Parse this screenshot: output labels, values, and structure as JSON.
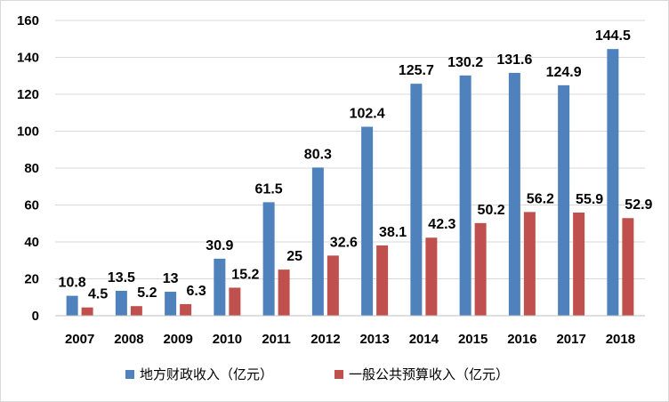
{
  "chart_data": {
    "type": "bar",
    "categories": [
      "2007",
      "2008",
      "2009",
      "2010",
      "2011",
      "2012",
      "2013",
      "2014",
      "2015",
      "2016",
      "2017",
      "2018"
    ],
    "series": [
      {
        "name": "地方财政收入（亿元）",
        "color": "#4f81bd",
        "values": [
          10.8,
          13.5,
          13,
          30.9,
          61.5,
          80.3,
          102.4,
          125.7,
          130.2,
          131.6,
          124.9,
          144.5
        ],
        "labels": [
          "10.8",
          "13.5",
          "13",
          "30.9",
          "61.5",
          "80.3",
          "102.4",
          "125.7",
          "130.2",
          "131.6",
          "124.9",
          "144.5"
        ]
      },
      {
        "name": "一般公共预算收入（亿元）",
        "color": "#c0504d",
        "values": [
          4.5,
          5.2,
          6.3,
          15.2,
          25,
          32.6,
          38.1,
          42.3,
          50.2,
          56.2,
          55.9,
          52.9
        ],
        "labels": [
          "4.5",
          "5.2",
          "6.3",
          "15.2",
          "25",
          "32.6",
          "38.1",
          "42.3",
          "50.2",
          "56.2",
          "55.9",
          "52.9"
        ]
      }
    ],
    "yticks": [
      "0",
      "20",
      "40",
      "60",
      "80",
      "100",
      "120",
      "140",
      "160"
    ],
    "ylim": [
      0,
      160
    ],
    "grid": true,
    "gridColor": "#d9d9d9",
    "legend": "bottom",
    "title": "",
    "xlabel": "",
    "ylabel": ""
  }
}
